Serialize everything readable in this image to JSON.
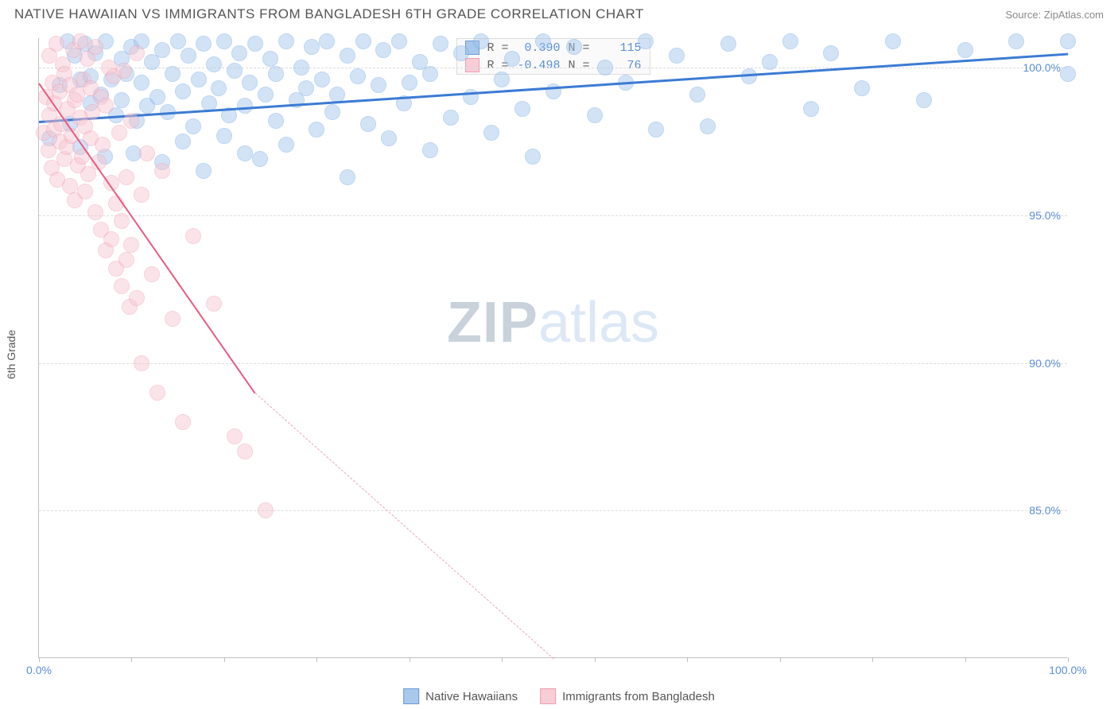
{
  "title": "NATIVE HAWAIIAN VS IMMIGRANTS FROM BANGLADESH 6TH GRADE CORRELATION CHART",
  "source": "Source: ZipAtlas.com",
  "ylabel": "6th Grade",
  "watermark": {
    "bold": "ZIP",
    "light": "atlas"
  },
  "chart": {
    "type": "scatter",
    "xlim": [
      0,
      100
    ],
    "ylim": [
      80,
      101
    ],
    "x_ticks": [
      0,
      9,
      18,
      27,
      36,
      45,
      54,
      63,
      72,
      81,
      90,
      100
    ],
    "x_tick_labels": {
      "0": "0.0%",
      "100": "100.0%"
    },
    "y_gridlines": [
      85,
      90,
      95,
      100
    ],
    "y_tick_labels": {
      "85": "85.0%",
      "90": "90.0%",
      "95": "95.0%",
      "100": "100.0%"
    },
    "grid_color": "#dddddd",
    "axis_color": "#c0c0c0",
    "background_color": "#ffffff",
    "tick_label_color": "#5b8fd6",
    "marker_radius": 10,
    "marker_opacity": 0.45,
    "series": [
      {
        "name": "Native Hawaiians",
        "color_fill": "#9ec3ed",
        "color_stroke": "#6ea6e2",
        "swatch_fill": "#a9c8ec",
        "swatch_stroke": "#6b9bd8",
        "R": "0.390",
        "N": "115",
        "trend": {
          "x0": 0,
          "y0": 98.2,
          "x1": 100,
          "y1": 100.5,
          "color": "#3b7bd4",
          "width": 3
        },
        "points": [
          [
            1,
            97.6
          ],
          [
            2,
            99.4
          ],
          [
            2.8,
            100.9
          ],
          [
            3,
            98.1
          ],
          [
            3.5,
            100.4
          ],
          [
            4,
            99.6
          ],
          [
            4,
            97.3
          ],
          [
            4.5,
            100.8
          ],
          [
            5,
            98.8
          ],
          [
            5,
            99.7
          ],
          [
            5.5,
            100.5
          ],
          [
            6,
            99.1
          ],
          [
            6.4,
            97.0
          ],
          [
            6.5,
            100.9
          ],
          [
            7,
            99.6
          ],
          [
            7.5,
            98.4
          ],
          [
            8,
            100.3
          ],
          [
            8,
            98.9
          ],
          [
            8.5,
            99.8
          ],
          [
            9,
            100.7
          ],
          [
            9.2,
            97.1
          ],
          [
            9.5,
            98.2
          ],
          [
            10,
            99.5
          ],
          [
            10,
            100.9
          ],
          [
            10.5,
            98.7
          ],
          [
            11,
            100.2
          ],
          [
            11.5,
            99.0
          ],
          [
            12,
            96.8
          ],
          [
            12,
            100.6
          ],
          [
            12.5,
            98.5
          ],
          [
            13,
            99.8
          ],
          [
            13.5,
            100.9
          ],
          [
            14,
            97.5
          ],
          [
            14,
            99.2
          ],
          [
            14.5,
            100.4
          ],
          [
            15,
            98.0
          ],
          [
            15.5,
            99.6
          ],
          [
            16,
            100.8
          ],
          [
            16,
            96.5
          ],
          [
            16.5,
            98.8
          ],
          [
            17,
            100.1
          ],
          [
            17.5,
            99.3
          ],
          [
            18,
            97.7
          ],
          [
            18,
            100.9
          ],
          [
            18.5,
            98.4
          ],
          [
            19,
            99.9
          ],
          [
            19.5,
            100.5
          ],
          [
            20,
            97.1
          ],
          [
            20,
            98.7
          ],
          [
            20.5,
            99.5
          ],
          [
            21,
            100.8
          ],
          [
            21.5,
            96.9
          ],
          [
            22,
            99.1
          ],
          [
            22.5,
            100.3
          ],
          [
            23,
            98.2
          ],
          [
            23,
            99.8
          ],
          [
            24,
            100.9
          ],
          [
            24,
            97.4
          ],
          [
            25,
            98.9
          ],
          [
            25.5,
            100.0
          ],
          [
            26,
            99.3
          ],
          [
            26.5,
            100.7
          ],
          [
            27,
            97.9
          ],
          [
            27.5,
            99.6
          ],
          [
            28,
            100.9
          ],
          [
            28.5,
            98.5
          ],
          [
            29,
            99.1
          ],
          [
            30,
            100.4
          ],
          [
            30,
            96.3
          ],
          [
            31,
            99.7
          ],
          [
            31.5,
            100.9
          ],
          [
            32,
            98.1
          ],
          [
            33,
            99.4
          ],
          [
            33.5,
            100.6
          ],
          [
            34,
            97.6
          ],
          [
            35,
            100.9
          ],
          [
            35.5,
            98.8
          ],
          [
            36,
            99.5
          ],
          [
            37,
            100.2
          ],
          [
            38,
            97.2
          ],
          [
            38,
            99.8
          ],
          [
            39,
            100.8
          ],
          [
            40,
            98.3
          ],
          [
            41,
            100.5
          ],
          [
            42,
            99.0
          ],
          [
            43,
            100.9
          ],
          [
            44,
            97.8
          ],
          [
            45,
            99.6
          ],
          [
            46,
            100.3
          ],
          [
            47,
            98.6
          ],
          [
            48,
            97.0
          ],
          [
            49,
            100.9
          ],
          [
            50,
            99.2
          ],
          [
            52,
            100.7
          ],
          [
            54,
            98.4
          ],
          [
            55,
            100.0
          ],
          [
            57,
            99.5
          ],
          [
            59,
            100.9
          ],
          [
            60,
            97.9
          ],
          [
            62,
            100.4
          ],
          [
            64,
            99.1
          ],
          [
            65,
            98.0
          ],
          [
            67,
            100.8
          ],
          [
            69,
            99.7
          ],
          [
            71,
            100.2
          ],
          [
            73,
            100.9
          ],
          [
            75,
            98.6
          ],
          [
            77,
            100.5
          ],
          [
            80,
            99.3
          ],
          [
            83,
            100.9
          ],
          [
            86,
            98.9
          ],
          [
            90,
            100.6
          ],
          [
            95,
            100.9
          ],
          [
            100,
            99.8
          ],
          [
            100,
            100.9
          ]
        ]
      },
      {
        "name": "Immigrants from Bangladesh",
        "color_fill": "#f7c4cf",
        "color_stroke": "#ef9db0",
        "swatch_fill": "#f7cdd6",
        "swatch_stroke": "#ef9db0",
        "R": "-0.498",
        "N": "76",
        "trend": {
          "x0": 0,
          "y0": 99.5,
          "x1": 21,
          "y1": 89.0,
          "color": "#e85a82",
          "width": 2
        },
        "trend_dash": {
          "x0": 21,
          "y0": 89.0,
          "x1": 50,
          "y1": 80.0,
          "color": "#e9a5b7"
        },
        "points": [
          [
            0.5,
            97.8
          ],
          [
            0.7,
            99.0
          ],
          [
            0.9,
            97.2
          ],
          [
            1,
            98.4
          ],
          [
            1,
            100.4
          ],
          [
            1.2,
            96.6
          ],
          [
            1.3,
            99.5
          ],
          [
            1.5,
            97.9
          ],
          [
            1.5,
            98.8
          ],
          [
            1.7,
            100.8
          ],
          [
            1.8,
            96.2
          ],
          [
            2,
            99.2
          ],
          [
            2,
            97.5
          ],
          [
            2.2,
            98.1
          ],
          [
            2.3,
            100.1
          ],
          [
            2.5,
            96.9
          ],
          [
            2.5,
            99.8
          ],
          [
            2.7,
            97.3
          ],
          [
            2.8,
            98.6
          ],
          [
            3,
            99.4
          ],
          [
            3,
            96.0
          ],
          [
            3.2,
            97.7
          ],
          [
            3.3,
            100.6
          ],
          [
            3.5,
            98.9
          ],
          [
            3.5,
            95.5
          ],
          [
            3.7,
            99.1
          ],
          [
            3.8,
            96.7
          ],
          [
            4,
            98.3
          ],
          [
            4,
            100.9
          ],
          [
            4.2,
            97.0
          ],
          [
            4.3,
            99.6
          ],
          [
            4.5,
            95.8
          ],
          [
            4.5,
            98.0
          ],
          [
            4.7,
            100.3
          ],
          [
            4.8,
            96.4
          ],
          [
            5,
            97.6
          ],
          [
            5,
            99.3
          ],
          [
            5.2,
            98.5
          ],
          [
            5.5,
            95.1
          ],
          [
            5.5,
            100.7
          ],
          [
            5.8,
            96.8
          ],
          [
            6,
            99.0
          ],
          [
            6,
            94.5
          ],
          [
            6.2,
            97.4
          ],
          [
            6.5,
            98.7
          ],
          [
            6.5,
            93.8
          ],
          [
            6.8,
            100.0
          ],
          [
            7,
            96.1
          ],
          [
            7,
            94.2
          ],
          [
            7.3,
            99.7
          ],
          [
            7.5,
            95.4
          ],
          [
            7.5,
            93.2
          ],
          [
            7.8,
            97.8
          ],
          [
            8,
            94.8
          ],
          [
            8,
            92.6
          ],
          [
            8.3,
            99.9
          ],
          [
            8.5,
            93.5
          ],
          [
            8.5,
            96.3
          ],
          [
            8.8,
            91.9
          ],
          [
            9,
            98.2
          ],
          [
            9,
            94.0
          ],
          [
            9.5,
            92.2
          ],
          [
            9.5,
            100.5
          ],
          [
            10,
            95.7
          ],
          [
            10,
            90.0
          ],
          [
            10.5,
            97.1
          ],
          [
            11,
            93.0
          ],
          [
            11.5,
            89.0
          ],
          [
            12,
            96.5
          ],
          [
            13,
            91.5
          ],
          [
            14,
            88.0
          ],
          [
            15,
            94.3
          ],
          [
            17,
            92.0
          ],
          [
            19,
            87.5
          ],
          [
            20,
            87.0
          ],
          [
            22,
            85.0
          ]
        ]
      }
    ]
  },
  "legend": {
    "items": [
      {
        "label": "Native Hawaiians",
        "series": 0
      },
      {
        "label": "Immigrants from Bangladesh",
        "series": 1
      }
    ]
  }
}
